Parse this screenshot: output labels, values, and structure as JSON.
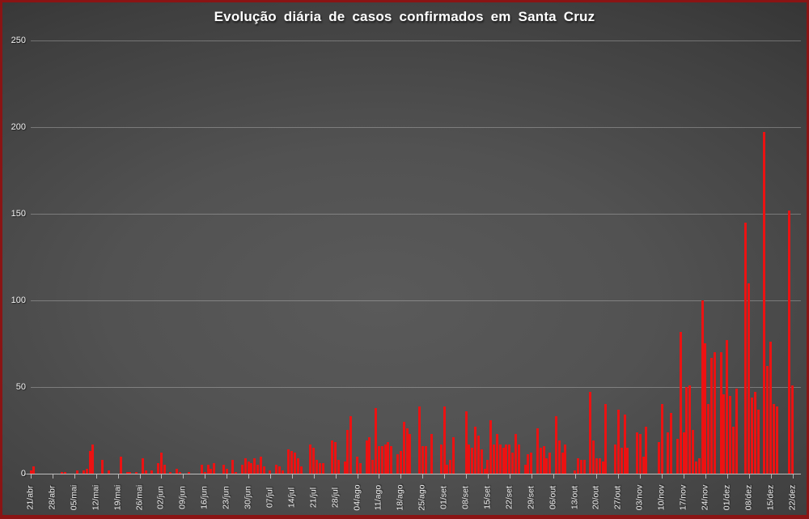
{
  "colors": {
    "bar": "#ec1212",
    "frame_border": "#8a1414",
    "text": "#ffffff",
    "gridline": "rgba(255,255,255,0.27)",
    "background_center": "#5a5a5a",
    "background_edge": "#222222"
  },
  "chart_data": {
    "type": "bar",
    "title": "Evolução diária de casos confirmados em Santa Cruz",
    "xlabel": "",
    "ylabel": "",
    "ylim": [
      0,
      250
    ],
    "yticks": [
      0,
      50,
      100,
      150,
      200,
      250
    ],
    "grid": true,
    "legend": "none",
    "x_start": "21/abr",
    "x_end": "22/dez",
    "x_frequency": "daily",
    "x_tick_every_days": 7,
    "x_tick_labels": [
      "21/abr",
      "28/abr",
      "05/mai",
      "12/mai",
      "19/mai",
      "26/mai",
      "02/jun",
      "09/jun",
      "16/jun",
      "23/jun",
      "30/jun",
      "07/jul",
      "14/jul",
      "21/jul",
      "28/jul",
      "04/ago",
      "11/ago",
      "18/ago",
      "25/ago",
      "01/set",
      "08/set",
      "15/set",
      "22/set",
      "29/set",
      "06/out",
      "13/out",
      "20/out",
      "27/out",
      "03/nov",
      "10/nov",
      "17/nov",
      "24/nov",
      "01/dez",
      "08/dez",
      "15/dez",
      "22/dez"
    ],
    "values": [
      2,
      4,
      0,
      0,
      0,
      0,
      0,
      0,
      0,
      0,
      1,
      1,
      0,
      0,
      0,
      2,
      0,
      2,
      3,
      13,
      17,
      0,
      0,
      8,
      0,
      2,
      0,
      0,
      0,
      10,
      0,
      1,
      1,
      0,
      1,
      0,
      9,
      2,
      0,
      2,
      0,
      6,
      12,
      5,
      0,
      1,
      0,
      3,
      1,
      0,
      0,
      1,
      0,
      0,
      0,
      5,
      1,
      5,
      3,
      6,
      0,
      0,
      5,
      3,
      0,
      8,
      1,
      0,
      5,
      9,
      7,
      6,
      9,
      5,
      10,
      4,
      0,
      2,
      0,
      5,
      4,
      2,
      0,
      14,
      13,
      12,
      9,
      4,
      0,
      0,
      17,
      15,
      8,
      6,
      6,
      0,
      0,
      19,
      18,
      8,
      0,
      7,
      25,
      33,
      0,
      10,
      6,
      0,
      19,
      21,
      8,
      38,
      16,
      16,
      17,
      18,
      16,
      0,
      11,
      13,
      30,
      26,
      23,
      0,
      0,
      39,
      16,
      16,
      0,
      23,
      0,
      0,
      17,
      39,
      5,
      8,
      21,
      0,
      0,
      0,
      36,
      17,
      15,
      27,
      22,
      14,
      3,
      8,
      31,
      17,
      23,
      17,
      15,
      17,
      17,
      12,
      23,
      17,
      0,
      5,
      11,
      12,
      0,
      26,
      15,
      16,
      9,
      12,
      0,
      33,
      19,
      12,
      17,
      0,
      0,
      2,
      9,
      8,
      8,
      0,
      47,
      19,
      9,
      9,
      7,
      40,
      0,
      0,
      17,
      37,
      15,
      34,
      15,
      0,
      0,
      24,
      23,
      10,
      27,
      0,
      0,
      0,
      18,
      40,
      0,
      24,
      35,
      0,
      20,
      82,
      24,
      50,
      51,
      25,
      7,
      9,
      100,
      75,
      40,
      67,
      70,
      0,
      70,
      46,
      77,
      45,
      27,
      49,
      0,
      0,
      145,
      110,
      44,
      47,
      37,
      0,
      197,
      62,
      76,
      40,
      39,
      0,
      0,
      0,
      152,
      51
    ]
  }
}
